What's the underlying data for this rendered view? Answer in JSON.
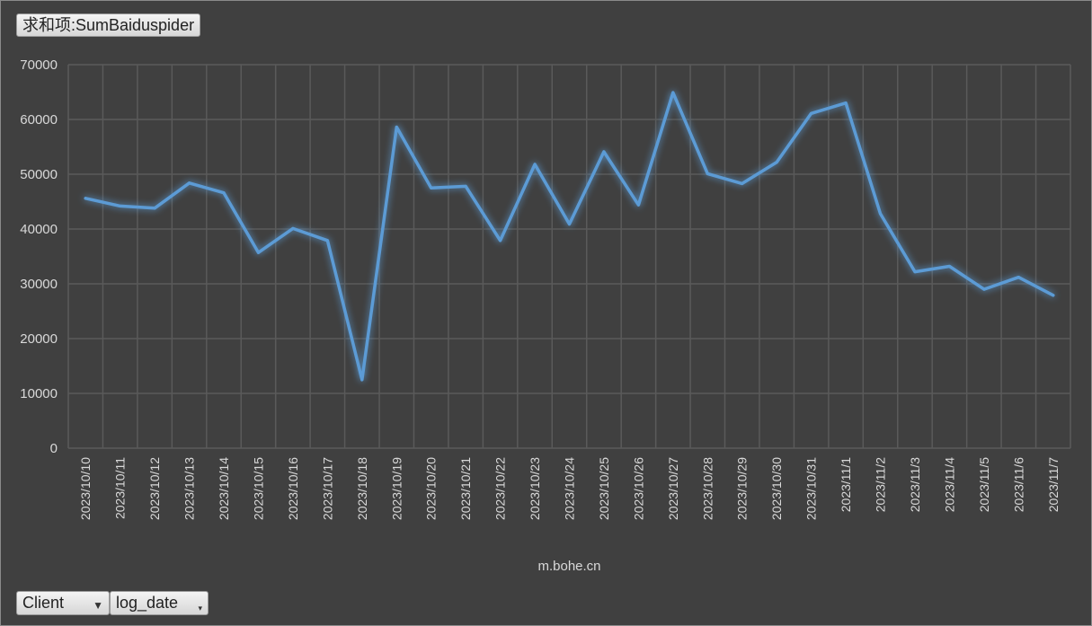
{
  "value_field": {
    "label": "求和项:SumBaiduspider"
  },
  "filter_fields": [
    {
      "label": "Client",
      "icon": "filter-icon"
    },
    {
      "label": "log_date",
      "icon": "dropdown-arrow-icon"
    }
  ],
  "chart_data": {
    "type": "line",
    "xlabel": "m.bohe.cn",
    "ylabel": "",
    "ylim": [
      0,
      70000
    ],
    "y_ticks": [
      0,
      10000,
      20000,
      30000,
      40000,
      50000,
      60000,
      70000
    ],
    "grid": true,
    "legend": "none",
    "line_color": "#5b9bd5",
    "categories": [
      "2023/10/10",
      "2023/10/11",
      "2023/10/12",
      "2023/10/13",
      "2023/10/14",
      "2023/10/15",
      "2023/10/16",
      "2023/10/17",
      "2023/10/18",
      "2023/10/19",
      "2023/10/20",
      "2023/10/21",
      "2023/10/22",
      "2023/10/23",
      "2023/10/24",
      "2023/10/25",
      "2023/10/26",
      "2023/10/27",
      "2023/10/28",
      "2023/10/29",
      "2023/10/30",
      "2023/10/31",
      "2023/11/1",
      "2023/11/2",
      "2023/11/3",
      "2023/11/4",
      "2023/11/5",
      "2023/11/6",
      "2023/11/7"
    ],
    "series": [
      {
        "values": [
          45600,
          44200,
          43800,
          48400,
          46600,
          35700,
          40100,
          37900,
          12500,
          58600,
          47500,
          47800,
          37900,
          51800,
          40900,
          54100,
          44400,
          64900,
          50100,
          48300,
          52200,
          61100,
          63000,
          42800,
          32200,
          33200,
          29000,
          31200,
          27900
        ]
      }
    ]
  }
}
